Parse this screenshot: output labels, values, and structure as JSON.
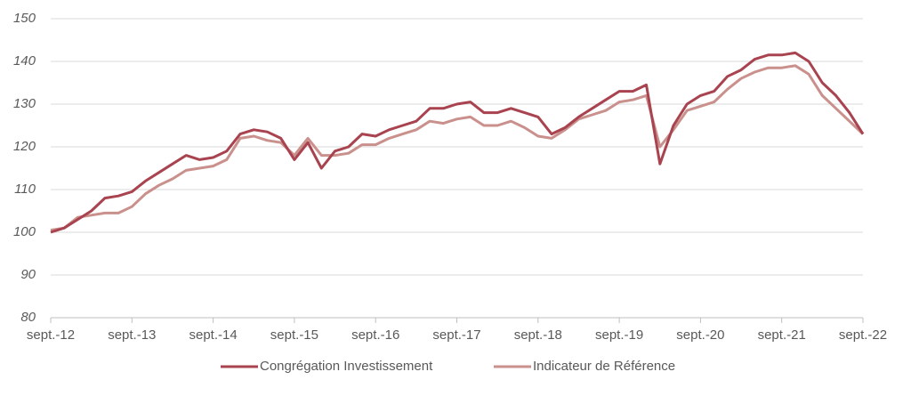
{
  "chart_data": {
    "type": "line",
    "x": [
      "2012-09",
      "2012-11",
      "2013-01",
      "2013-03",
      "2013-05",
      "2013-07",
      "2013-09",
      "2013-11",
      "2014-01",
      "2014-03",
      "2014-05",
      "2014-07",
      "2014-09",
      "2014-11",
      "2015-01",
      "2015-03",
      "2015-05",
      "2015-07",
      "2015-09",
      "2015-11",
      "2016-01",
      "2016-03",
      "2016-05",
      "2016-07",
      "2016-09",
      "2016-11",
      "2017-01",
      "2017-03",
      "2017-05",
      "2017-07",
      "2017-09",
      "2017-11",
      "2018-01",
      "2018-03",
      "2018-05",
      "2018-07",
      "2018-09",
      "2018-11",
      "2019-01",
      "2019-03",
      "2019-05",
      "2019-07",
      "2019-09",
      "2019-11",
      "2020-01",
      "2020-03",
      "2020-05",
      "2020-07",
      "2020-09",
      "2020-11",
      "2021-01",
      "2021-03",
      "2021-05",
      "2021-07",
      "2021-09",
      "2021-11",
      "2022-01",
      "2022-03",
      "2022-05",
      "2022-07",
      "2022-09"
    ],
    "series": [
      {
        "name": "Congrégation Investissement",
        "color": "#a8434f",
        "values": [
          100,
          101,
          103,
          105,
          108,
          108.5,
          109.5,
          112,
          114,
          116,
          118,
          117,
          117.5,
          119,
          123,
          124,
          123.5,
          122,
          117,
          121,
          115,
          119,
          120,
          123,
          122.5,
          124,
          125,
          126,
          129,
          129,
          130,
          130.5,
          128,
          128,
          129,
          128,
          127,
          123,
          124.5,
          127,
          129,
          131,
          133,
          133,
          134.5,
          116,
          125,
          130,
          132,
          133,
          136.5,
          138,
          140.5,
          141.5,
          141.5,
          142,
          140,
          135,
          132,
          128,
          123
        ]
      },
      {
        "name": "Indicateur de Référence",
        "color": "#c9908c",
        "values": [
          100.5,
          101,
          103.5,
          104,
          104.5,
          104.5,
          106,
          109,
          111,
          112.5,
          114.5,
          115,
          115.5,
          117,
          122,
          122.5,
          121.5,
          121,
          118,
          122,
          118,
          118,
          118.5,
          120.5,
          120.5,
          122,
          123,
          124,
          126,
          125.5,
          126.5,
          127,
          125,
          125,
          126,
          124.5,
          122.5,
          122,
          124,
          126.5,
          127.5,
          128.5,
          130.5,
          131,
          132,
          120,
          124,
          128.5,
          129.5,
          130.5,
          133.5,
          136,
          137.5,
          138.5,
          138.5,
          139,
          137,
          132,
          129,
          126,
          123
        ]
      }
    ],
    "xlim": [
      "2012-09",
      "2022-09"
    ],
    "xticks": [
      {
        "value": "2012-09",
        "label": "sept.-12"
      },
      {
        "value": "2013-09",
        "label": "sept.-13"
      },
      {
        "value": "2014-09",
        "label": "sept.-14"
      },
      {
        "value": "2015-09",
        "label": "sept.-15"
      },
      {
        "value": "2016-09",
        "label": "sept.-16"
      },
      {
        "value": "2017-09",
        "label": "sept.-17"
      },
      {
        "value": "2018-09",
        "label": "sept.-18"
      },
      {
        "value": "2019-09",
        "label": "sept.-19"
      },
      {
        "value": "2020-09",
        "label": "sept.-20"
      },
      {
        "value": "2021-09",
        "label": "sept.-21"
      },
      {
        "value": "2022-09",
        "label": "sept.-22"
      }
    ],
    "ylim": [
      80,
      150
    ],
    "yticks": [
      80,
      90,
      100,
      110,
      120,
      130,
      140,
      150
    ],
    "grid": true
  }
}
